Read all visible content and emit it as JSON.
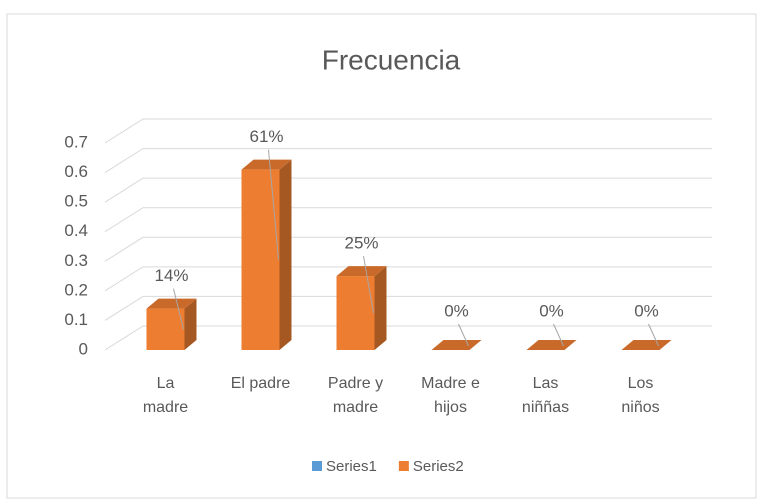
{
  "chart_data": {
    "type": "bar3d",
    "title": "Frecuencia",
    "categories": [
      "La madre",
      "El padre",
      "Padre y madre",
      "Madre e hijos",
      "Las niññas",
      "Los niños"
    ],
    "series": [
      {
        "name": "Series1",
        "color": "#5b9bd5",
        "values": [
          null,
          null,
          null,
          null,
          null,
          null
        ]
      },
      {
        "name": "Series2",
        "color": "#ed7d31",
        "values": [
          0.14,
          0.61,
          0.25,
          0,
          0,
          0
        ],
        "value_labels": [
          "14%",
          "61%",
          "25%",
          "0%",
          "0%",
          "0%"
        ]
      }
    ],
    "ylim": [
      0,
      0.7
    ],
    "yticks": [
      0,
      0.1,
      0.2,
      0.3,
      0.4,
      0.5,
      0.6,
      0.7
    ],
    "grid": true,
    "legend": "bottom"
  }
}
